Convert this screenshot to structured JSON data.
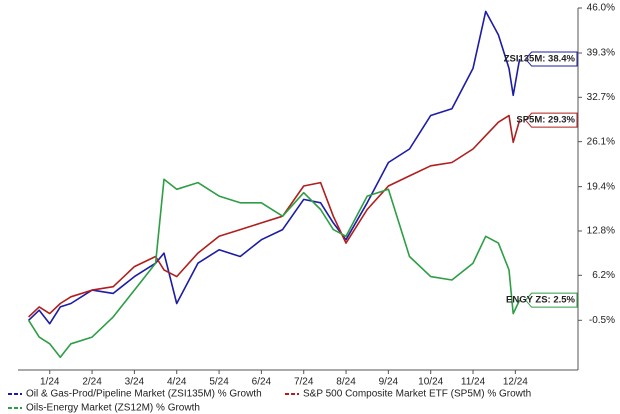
{
  "chart_data": {
    "type": "line",
    "x": [
      0.5,
      0.75,
      1,
      1.25,
      1.5,
      2,
      2.5,
      3,
      3.5,
      3.7,
      4,
      4.5,
      5,
      5.5,
      6,
      6.5,
      7,
      7.4,
      7.7,
      8,
      8.5,
      9,
      9.5,
      10,
      10.5,
      11,
      11.3,
      11.6,
      11.85,
      11.95,
      12.1
    ],
    "xlim": [
      0.25,
      13.48
    ],
    "xticks": [
      {
        "value": 1,
        "label": "1/24"
      },
      {
        "value": 2,
        "label": "2/24"
      },
      {
        "value": 3,
        "label": "3/24"
      },
      {
        "value": 4,
        "label": "4/24"
      },
      {
        "value": 5,
        "label": "5/24"
      },
      {
        "value": 6,
        "label": "6/24"
      },
      {
        "value": 7,
        "label": "7/24"
      },
      {
        "value": 8,
        "label": "8/24"
      },
      {
        "value": 9,
        "label": "9/24"
      },
      {
        "value": 10,
        "label": "10/24"
      },
      {
        "value": 11,
        "label": "11/24"
      },
      {
        "value": 12,
        "label": "12/24"
      }
    ],
    "ylim": [
      -7.9,
      46.0
    ],
    "yticks": [
      {
        "value": -0.5,
        "label": "-0.5%"
      },
      {
        "value": 6.2,
        "label": "6.2%"
      },
      {
        "value": 12.8,
        "label": "12.8%"
      },
      {
        "value": 19.4,
        "label": "19.4%"
      },
      {
        "value": 26.1,
        "label": "26.1%"
      },
      {
        "value": 32.7,
        "label": "32.7%"
      },
      {
        "value": 39.3,
        "label": "39.3%"
      },
      {
        "value": 46.0,
        "label": "46.0%"
      }
    ],
    "series": [
      {
        "name": "Oil & Gas-Prod/Pipeline Market (ZSI135M) % Growth",
        "color": "#1c1ca8",
        "end_label": "ZSI135M: 38.4%",
        "values": [
          -0.5,
          1,
          -1,
          1.5,
          2,
          4,
          3.5,
          6,
          8,
          9.5,
          2,
          8,
          10,
          9,
          11.5,
          13,
          17.5,
          17,
          14,
          11.5,
          17,
          23,
          25,
          30,
          31,
          37,
          45.5,
          42,
          37,
          33,
          38.4
        ]
      },
      {
        "name": "S&P 500 Composite Market ETF (SP5M) % Growth",
        "color": "#b01e1e",
        "end_label": "SP5M: 29.3%",
        "values": [
          0,
          1.5,
          0.5,
          2,
          3,
          4,
          4.5,
          7.5,
          9,
          7,
          6,
          9.5,
          12,
          13,
          14,
          15,
          19.5,
          20,
          15,
          11,
          16,
          19.5,
          21,
          22.5,
          23,
          25,
          27,
          29,
          30,
          26,
          29.3
        ]
      },
      {
        "name": "Oils-Energy Market (ZS12M) % Growth",
        "color": "#2e9e45",
        "end_label": "ENGY ZS: 2.5%",
        "values": [
          -0.5,
          -3,
          -4,
          -6,
          -4,
          -3,
          0,
          4,
          8,
          20.5,
          19,
          20,
          18,
          17,
          17,
          15,
          18.5,
          16,
          13,
          12,
          18,
          19,
          9,
          6,
          5.5,
          8,
          12,
          11,
          7,
          0.5,
          2.5
        ]
      }
    ]
  }
}
